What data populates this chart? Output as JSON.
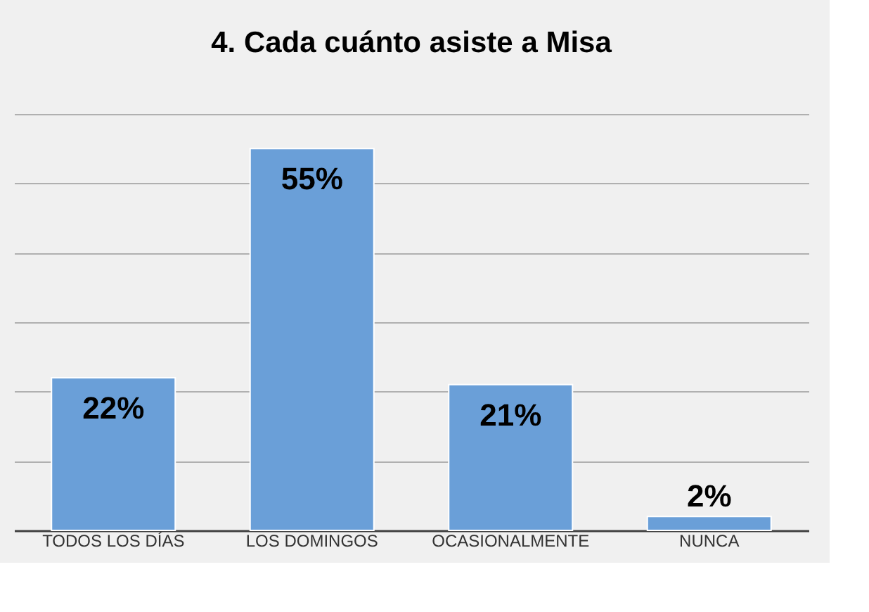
{
  "chart_data": {
    "type": "bar",
    "title": "4. Cada cuánto asiste a Misa",
    "categories": [
      "TODOS LOS DÍAS",
      "LOS DOMINGOS",
      "OCASIONALMENTE",
      "NUNCA"
    ],
    "values": [
      22,
      55,
      21,
      2
    ],
    "value_labels": [
      "22%",
      "55%",
      "21%",
      "2%"
    ],
    "color": "#6a9fd8",
    "ylim": [
      0,
      60
    ],
    "yticks": [
      {
        "value": 0,
        "label": null
      },
      {
        "value": 10,
        "label": null
      },
      {
        "value": 20,
        "label": null
      },
      {
        "value": 30,
        "label": null
      },
      {
        "value": 40,
        "label": null
      },
      {
        "value": 50,
        "label": null
      },
      {
        "value": 60,
        "label": null
      }
    ],
    "grid": "y",
    "tick_labels": "x"
  }
}
